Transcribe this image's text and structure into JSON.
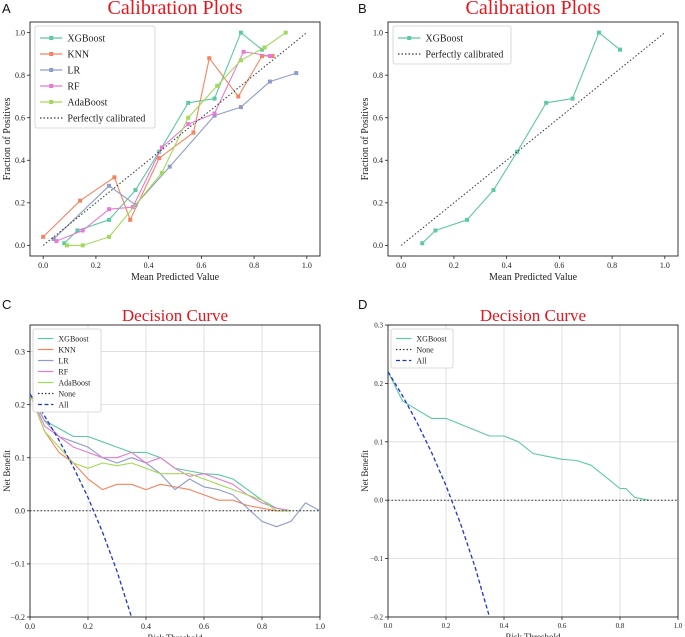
{
  "chart_data": [
    {
      "panel": "A",
      "type": "line",
      "title": "Calibration Plots",
      "xlabel": "Mean Predicted Value",
      "ylabel": "Fraction of Positives",
      "xlim": [
        -0.05,
        1.05
      ],
      "ylim": [
        -0.05,
        1.05
      ],
      "xticks": [
        "0.0",
        "0.2",
        "0.4",
        "0.6",
        "0.8",
        "1.0"
      ],
      "yticks": [
        "0.0",
        "0.2",
        "0.4",
        "0.6",
        "0.8",
        "1.0"
      ],
      "grid": false,
      "legend": "top-left",
      "series": [
        {
          "name": "XGBoost",
          "color": "#5dc8a4",
          "marker": "square",
          "x": [
            0.08,
            0.13,
            0.25,
            0.35,
            0.44,
            0.55,
            0.65,
            0.75,
            0.83
          ],
          "y": [
            0.01,
            0.07,
            0.12,
            0.26,
            0.44,
            0.67,
            0.69,
            1.0,
            0.92
          ]
        },
        {
          "name": "KNN",
          "color": "#f4845f",
          "marker": "square",
          "x": [
            0.0,
            0.14,
            0.27,
            0.33,
            0.44,
            0.57,
            0.63,
            0.74,
            0.83,
            0.87
          ],
          "y": [
            0.04,
            0.21,
            0.32,
            0.12,
            0.41,
            0.53,
            0.88,
            0.7,
            0.89,
            0.89
          ]
        },
        {
          "name": "LR",
          "color": "#8e9cc9",
          "marker": "square",
          "x": [
            0.04,
            0.25,
            0.35,
            0.48,
            0.65,
            0.75,
            0.86,
            0.96
          ],
          "y": [
            0.03,
            0.28,
            0.19,
            0.37,
            0.61,
            0.65,
            0.77,
            0.81
          ]
        },
        {
          "name": "RF",
          "color": "#e57bd3",
          "marker": "square",
          "x": [
            0.05,
            0.15,
            0.25,
            0.34,
            0.45,
            0.55,
            0.65,
            0.76,
            0.86
          ],
          "y": [
            0.02,
            0.07,
            0.17,
            0.18,
            0.46,
            0.57,
            0.62,
            0.91,
            0.89
          ]
        },
        {
          "name": "AdaBoost",
          "color": "#a3d95b",
          "marker": "square",
          "x": [
            0.09,
            0.15,
            0.25,
            0.45,
            0.55,
            0.66,
            0.75,
            0.84,
            0.92
          ],
          "y": [
            0.0,
            0.0,
            0.04,
            0.34,
            0.6,
            0.75,
            0.87,
            0.93,
            1.0
          ]
        },
        {
          "name": "Perfectly calibrated",
          "color": "#333333",
          "dashed": "dotted",
          "x": [
            0,
            1
          ],
          "y": [
            0,
            1
          ]
        }
      ]
    },
    {
      "panel": "B",
      "type": "line",
      "title": "Calibration Plots",
      "xlabel": "Mean Predicted Value",
      "ylabel": "Fraction of Positives",
      "xlim": [
        -0.05,
        1.05
      ],
      "ylim": [
        -0.05,
        1.05
      ],
      "xticks": [
        "0.0",
        "0.2",
        "0.4",
        "0.6",
        "0.8",
        "1.0"
      ],
      "yticks": [
        "0.0",
        "0.2",
        "0.4",
        "0.6",
        "0.8",
        "1.0"
      ],
      "grid": false,
      "legend": "top-left",
      "series": [
        {
          "name": "XGBoost",
          "color": "#5dc8a4",
          "marker": "square",
          "x": [
            0.08,
            0.13,
            0.25,
            0.35,
            0.44,
            0.55,
            0.65,
            0.75,
            0.83
          ],
          "y": [
            0.01,
            0.07,
            0.12,
            0.26,
            0.44,
            0.67,
            0.69,
            1.0,
            0.92
          ]
        },
        {
          "name": "Perfectly calibrated",
          "color": "#333333",
          "dashed": "dotted",
          "x": [
            0,
            1
          ],
          "y": [
            0,
            1
          ]
        }
      ]
    },
    {
      "panel": "C",
      "type": "line",
      "title": "Decision Curve",
      "xlabel": "Risk Threshold",
      "ylabel": "Net Benefit",
      "xlim": [
        0,
        1
      ],
      "ylim": [
        -0.2,
        0.35
      ],
      "xticks": [
        "0.0",
        "0.2",
        "0.4",
        "0.6",
        "0.8",
        "1.0"
      ],
      "yticks": [
        "−0.2",
        "−0.1",
        "0.0",
        "0.1",
        "0.2",
        "0.3"
      ],
      "grid": true,
      "legend": "top-left",
      "series": [
        {
          "name": "XGBoost",
          "color": "#5dc8a4",
          "x": [
            0.0,
            0.05,
            0.1,
            0.15,
            0.2,
            0.25,
            0.3,
            0.35,
            0.4,
            0.45,
            0.5,
            0.55,
            0.6,
            0.65,
            0.7,
            0.75,
            0.8,
            0.85,
            0.9
          ],
          "y": [
            0.22,
            0.17,
            0.155,
            0.14,
            0.14,
            0.13,
            0.12,
            0.11,
            0.11,
            0.1,
            0.08,
            0.075,
            0.07,
            0.068,
            0.06,
            0.04,
            0.02,
            0.005,
            0.0
          ]
        },
        {
          "name": "KNN",
          "color": "#f4845f",
          "x": [
            0.0,
            0.05,
            0.1,
            0.15,
            0.2,
            0.25,
            0.3,
            0.35,
            0.4,
            0.45,
            0.5,
            0.55,
            0.6,
            0.65,
            0.7,
            0.75,
            0.8,
            0.85,
            0.9
          ],
          "y": [
            0.22,
            0.15,
            0.11,
            0.09,
            0.06,
            0.04,
            0.05,
            0.05,
            0.04,
            0.05,
            0.045,
            0.04,
            0.03,
            0.02,
            0.02,
            0.01,
            0.005,
            0.0,
            0.0
          ]
        },
        {
          "name": "LR",
          "color": "#8e9cc9",
          "x": [
            0.0,
            0.05,
            0.1,
            0.15,
            0.2,
            0.25,
            0.3,
            0.35,
            0.4,
            0.45,
            0.5,
            0.55,
            0.6,
            0.65,
            0.7,
            0.75,
            0.8,
            0.85,
            0.9,
            0.95,
            1.0
          ],
          "y": [
            0.22,
            0.17,
            0.14,
            0.13,
            0.12,
            0.1,
            0.09,
            0.1,
            0.09,
            0.07,
            0.04,
            0.06,
            0.045,
            0.04,
            0.03,
            0.005,
            -0.02,
            -0.03,
            -0.02,
            0.015,
            0.0
          ]
        },
        {
          "name": "RF",
          "color": "#e57bd3",
          "x": [
            0.0,
            0.05,
            0.1,
            0.15,
            0.2,
            0.25,
            0.3,
            0.35,
            0.4,
            0.45,
            0.5,
            0.55,
            0.6,
            0.65,
            0.7,
            0.75,
            0.8,
            0.85,
            0.9
          ],
          "y": [
            0.22,
            0.16,
            0.14,
            0.12,
            0.11,
            0.1,
            0.1,
            0.11,
            0.09,
            0.1,
            0.08,
            0.065,
            0.07,
            0.06,
            0.05,
            0.03,
            0.015,
            0.005,
            0.0
          ]
        },
        {
          "name": "AdaBoost",
          "color": "#a3d95b",
          "x": [
            0.0,
            0.05,
            0.1,
            0.15,
            0.2,
            0.25,
            0.3,
            0.35,
            0.4,
            0.45,
            0.5,
            0.55,
            0.6,
            0.65,
            0.7,
            0.75,
            0.8,
            0.85,
            0.9
          ],
          "y": [
            0.22,
            0.15,
            0.12,
            0.09,
            0.08,
            0.09,
            0.085,
            0.09,
            0.08,
            0.07,
            0.07,
            0.07,
            0.06,
            0.05,
            0.04,
            0.03,
            0.02,
            0.0,
            0.0
          ]
        },
        {
          "name": "None",
          "color": "#333333",
          "dashed": "dotted",
          "x": [
            0,
            1
          ],
          "y": [
            0,
            0
          ]
        },
        {
          "name": "All",
          "color": "#1f34c8",
          "dashed": "dashed",
          "x": [
            0.0,
            0.05,
            0.1,
            0.15,
            0.2,
            0.25,
            0.3,
            0.35
          ],
          "y": [
            0.22,
            0.179,
            0.133,
            0.082,
            0.025,
            -0.04,
            -0.114,
            -0.2
          ]
        }
      ]
    },
    {
      "panel": "D",
      "type": "line",
      "title": "Decision Curve",
      "xlabel": "Risk Threshold",
      "ylabel": "Net Benefit",
      "xlim": [
        0,
        1
      ],
      "ylim": [
        -0.2,
        0.3
      ],
      "xticks": [
        "0.0",
        "0.2",
        "0.4",
        "0.6",
        "0.8",
        "1.0"
      ],
      "yticks": [
        "−0.2",
        "−0.1",
        "0.0",
        "0.1",
        "0.2",
        "0.3"
      ],
      "grid": true,
      "legend": "top-left",
      "series": [
        {
          "name": "XGBoost",
          "color": "#5dc8a4",
          "x": [
            0.0,
            0.05,
            0.1,
            0.15,
            0.2,
            0.25,
            0.3,
            0.35,
            0.4,
            0.45,
            0.5,
            0.55,
            0.6,
            0.65,
            0.7,
            0.75,
            0.8,
            0.82,
            0.85,
            0.9
          ],
          "y": [
            0.22,
            0.17,
            0.155,
            0.14,
            0.14,
            0.13,
            0.12,
            0.11,
            0.11,
            0.1,
            0.08,
            0.075,
            0.07,
            0.068,
            0.06,
            0.04,
            0.02,
            0.02,
            0.005,
            0.0
          ]
        },
        {
          "name": "None",
          "color": "#333333",
          "dashed": "dotted",
          "x": [
            0,
            1
          ],
          "y": [
            0,
            0
          ]
        },
        {
          "name": "All",
          "color": "#1f34c8",
          "dashed": "dashed",
          "x": [
            0.0,
            0.05,
            0.1,
            0.15,
            0.2,
            0.25,
            0.3,
            0.35
          ],
          "y": [
            0.22,
            0.179,
            0.133,
            0.082,
            0.025,
            -0.04,
            -0.114,
            -0.2
          ]
        }
      ]
    }
  ]
}
